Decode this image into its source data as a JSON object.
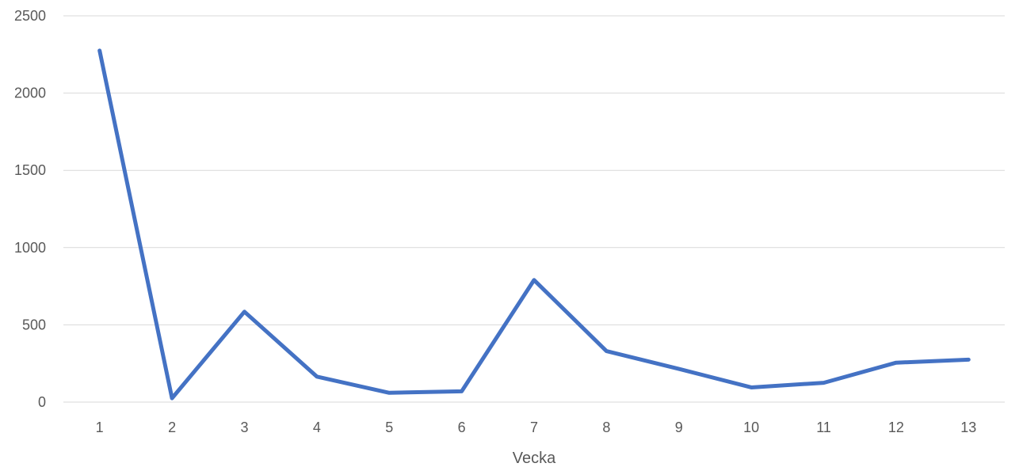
{
  "chart_data": {
    "type": "line",
    "title": "",
    "xlabel": "Vecka",
    "ylabel": "",
    "categories": [
      "1",
      "2",
      "3",
      "4",
      "5",
      "6",
      "7",
      "8",
      "9",
      "10",
      "11",
      "12",
      "13"
    ],
    "series": [
      {
        "values": [
          2275,
          25,
          585,
          165,
          60,
          70,
          790,
          330,
          215,
          95,
          125,
          255,
          275
        ],
        "color": "#4472c4"
      }
    ],
    "ylim": [
      0,
      2500
    ],
    "yticks": [
      0,
      500,
      1000,
      1500,
      2000,
      2500
    ],
    "grid": "horizontal",
    "legend": "none"
  }
}
